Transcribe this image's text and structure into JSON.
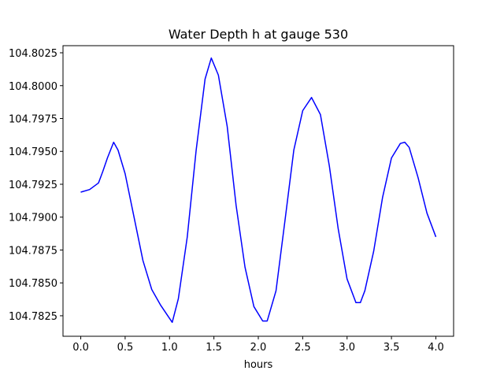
{
  "chart_data": {
    "type": "line",
    "title": "Water Depth h at gauge 530",
    "xlabel": "hours",
    "ylabel": "",
    "xlim": [
      -0.2,
      4.2
    ],
    "ylim": [
      104.78094,
      104.80304
    ],
    "grid": false,
    "x_ticks": [
      0.0,
      0.5,
      1.0,
      1.5,
      2.0,
      2.5,
      3.0,
      3.5,
      4.0
    ],
    "x_tick_labels": [
      "0.0",
      "0.5",
      "1.0",
      "1.5",
      "2.0",
      "2.5",
      "3.0",
      "3.5",
      "4.0"
    ],
    "y_ticks": [
      104.7825,
      104.785,
      104.7875,
      104.79,
      104.7925,
      104.795,
      104.7975,
      104.8,
      104.8025
    ],
    "y_tick_labels": [
      "104.7825",
      "104.7850",
      "104.7875",
      "104.7900",
      "104.7925",
      "104.7950",
      "104.7975",
      "104.8000",
      "104.8025"
    ],
    "series": [
      {
        "name": "h",
        "color": "#0000ff",
        "x": [
          0,
          0.1,
          0.2,
          0.25,
          0.3,
          0.37,
          0.42,
          0.5,
          0.6,
          0.7,
          0.8,
          0.9,
          1.0,
          1.03,
          1.1,
          1.2,
          1.3,
          1.4,
          1.47,
          1.55,
          1.65,
          1.75,
          1.85,
          1.95,
          2.05,
          2.1,
          2.2,
          2.3,
          2.4,
          2.5,
          2.6,
          2.7,
          2.8,
          2.9,
          3.0,
          3.1,
          3.15,
          3.2,
          3.3,
          3.4,
          3.5,
          3.6,
          3.65,
          3.7,
          3.8,
          3.9,
          4.0
        ],
        "y": [
          104.7919,
          104.7921,
          104.7926,
          104.7935,
          104.7945,
          104.7957,
          104.7951,
          104.7933,
          104.79,
          104.7867,
          104.7845,
          104.7833,
          104.7823,
          104.782,
          104.7838,
          104.7885,
          104.7951,
          104.8005,
          104.8021,
          104.8008,
          104.7969,
          104.7909,
          104.7862,
          104.7832,
          104.7821,
          104.7821,
          104.7844,
          104.7897,
          104.7951,
          104.7981,
          104.7991,
          104.7978,
          104.7939,
          104.7891,
          104.7853,
          104.7835,
          104.7835,
          104.7844,
          104.7874,
          104.7915,
          104.7945,
          104.7956,
          104.7957,
          104.7953,
          104.793,
          104.7903,
          104.7885
        ]
      }
    ]
  }
}
